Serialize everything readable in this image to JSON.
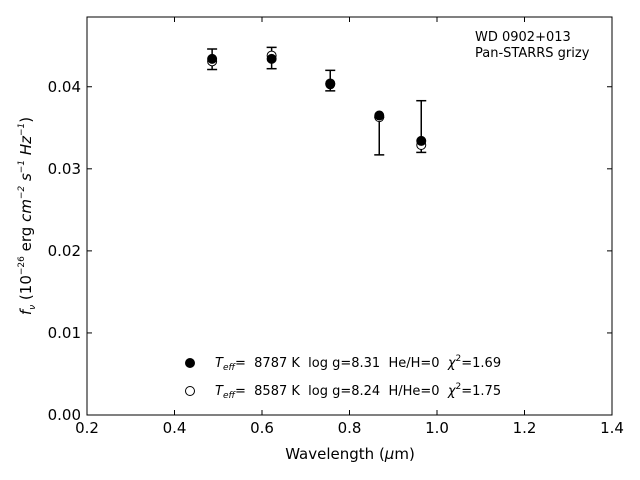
{
  "chart_data": {
    "type": "scatter",
    "annotation": [
      "WD 0902+013",
      "Pan-STARRS grizy"
    ],
    "xlabel": {
      "prefix": "Wavelength (",
      "mu": "μ",
      "unit": "m)"
    },
    "ylabel": {
      "f": "f",
      "nu": "ν",
      "open": " (10",
      "exp1": "−26",
      "erg": " erg ",
      "cm": "cm",
      "exp2": "−2",
      "s": " s",
      "exp3": "−1",
      "hz": " Hz",
      "exp4": "−1",
      "close": ")"
    },
    "xlim": [
      0.2,
      1.4
    ],
    "ylim": [
      0.0,
      0.0485
    ],
    "xticks": [
      0.2,
      0.4,
      0.6,
      0.8,
      1.0,
      1.2,
      1.4
    ],
    "xtick_labels": [
      "0.2",
      "0.4",
      "0.6",
      "0.8",
      "1.0",
      "1.2",
      "1.4"
    ],
    "yticks": [
      0.0,
      0.01,
      0.02,
      0.03,
      0.04
    ],
    "ytick_labels": [
      "0.00",
      "0.01",
      "0.02",
      "0.03",
      "0.04"
    ],
    "observed": {
      "x": [
        0.486,
        0.622,
        0.756,
        0.868,
        0.964
      ],
      "y": [
        0.0434,
        0.0435,
        0.0408,
        0.0354,
        0.0351
      ],
      "err_low": [
        0.0421,
        0.0422,
        0.0395,
        0.0317,
        0.032
      ],
      "err_high": [
        0.0446,
        0.0448,
        0.042,
        0.0363,
        0.0383
      ]
    },
    "series": [
      {
        "marker": "filled",
        "x": [
          0.486,
          0.622,
          0.756,
          0.868,
          0.964
        ],
        "y": [
          0.0434,
          0.0434,
          0.0403,
          0.0365,
          0.0334
        ]
      },
      {
        "marker": "open",
        "x": [
          0.486,
          0.622,
          0.756,
          0.868,
          0.964
        ],
        "y": [
          0.0431,
          0.0438,
          0.0404,
          0.0363,
          0.0329
        ]
      }
    ],
    "legend": [
      {
        "marker": "filled",
        "teff": "T",
        "eff": "eff",
        "text": "=  8787 K  log g=8.31  He/H=0  ",
        "chi": "χ",
        "chi_exp": "2",
        "chi_val": "=1.69"
      },
      {
        "marker": "open",
        "teff": "T",
        "eff": "eff",
        "text": "=  8587 K  log g=8.24  H/He=0  ",
        "chi": "χ",
        "chi_exp": "2",
        "chi_val": "=1.75"
      }
    ]
  }
}
